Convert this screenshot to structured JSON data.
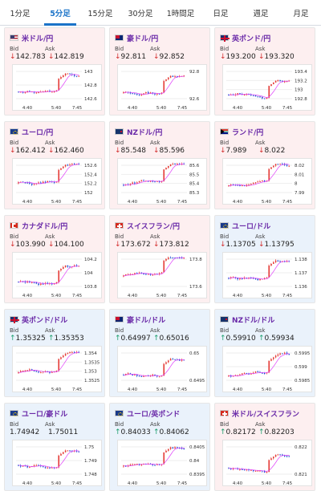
{
  "tabs": [
    {
      "label": "1分足",
      "active": false
    },
    {
      "label": "5分足",
      "active": true
    },
    {
      "label": "15分足",
      "active": false
    },
    {
      "label": "30分足",
      "active": false
    },
    {
      "label": "1時間足",
      "active": false
    },
    {
      "label": "日足",
      "active": false
    },
    {
      "label": "週足",
      "active": false
    },
    {
      "label": "月足",
      "active": false
    }
  ],
  "labels": {
    "bid": "Bid",
    "ask": "Ask"
  },
  "colors": {
    "up": "#1a9d6b",
    "down": "#d32f2f",
    "candle_up": "#e53935",
    "candle_down": "#1e4bd1",
    "ma": "#e040fb",
    "accent": "#1a73c8"
  },
  "cards": [
    {
      "name": "米ドル/円",
      "flag": "us",
      "bg": "pink",
      "bid": "142.783",
      "ask": "142.819",
      "dir": "down",
      "ticks": [
        "143",
        "142.8",
        "142.6"
      ],
      "times": [
        "4:40",
        "5:40",
        "7:45"
      ]
    },
    {
      "name": "豪ドル/円",
      "flag": "au",
      "bg": "pink",
      "bid": "92.811",
      "ask": "92.852",
      "dir": "down",
      "ticks": [
        "92.8",
        "92.6"
      ],
      "times": [
        "4:40",
        "5:40",
        "7:45"
      ]
    },
    {
      "name": "英ポンド/円",
      "flag": "gb",
      "bg": "pink",
      "bid": "193.200",
      "ask": "193.320",
      "dir": "down",
      "ticks": [
        "193.4",
        "193.2",
        "193",
        "192.8"
      ],
      "times": [
        "4:40",
        "5:40",
        "7:45"
      ]
    },
    {
      "name": "ユーロ/円",
      "flag": "eu",
      "bg": "pink",
      "bid": "162.412",
      "ask": "162.460",
      "dir": "down",
      "ticks": [
        "152.6",
        "152.4",
        "152.2",
        "152"
      ],
      "times": [
        "4:40",
        "5:40",
        "7:45"
      ]
    },
    {
      "name": "NZドル/円",
      "flag": "nz",
      "bg": "pink",
      "bid": "85.548",
      "ask": "85.596",
      "dir": "down",
      "ticks": [
        "85.6",
        "85.5",
        "85.4",
        "85.3"
      ],
      "times": [
        "4:40",
        "5:40",
        "7:45"
      ]
    },
    {
      "name": "ランド/円",
      "flag": "za",
      "bg": "pink",
      "bid": "7.989",
      "ask": "8.022",
      "dir": "down",
      "ticks": [
        "8.02",
        "8.01",
        "8",
        "7.99"
      ],
      "times": [
        "4:40",
        "5:40",
        "7:45"
      ]
    },
    {
      "name": "カナダドル/円",
      "flag": "ca",
      "bg": "pink",
      "bid": "103.990",
      "ask": "104.100",
      "dir": "down",
      "ticks": [
        "104.2",
        "104",
        "103.8"
      ],
      "times": [
        "4:40",
        "5:40",
        "7:45"
      ]
    },
    {
      "name": "スイスフラン/円",
      "flag": "ch",
      "bg": "pink",
      "bid": "173.672",
      "ask": "173.812",
      "dir": "down",
      "ticks": [
        "173.8",
        "173.6"
      ],
      "times": [
        "4:40",
        "5:40",
        "7:45"
      ]
    },
    {
      "name": "ユーロ/ドル",
      "flag": "eu",
      "bg": "blue",
      "bid": "1.13705",
      "ask": "1.13795",
      "dir": "down",
      "ticks": [
        "1.138",
        "1.137",
        "1.136"
      ],
      "times": [
        "4:40",
        "5:40",
        "7:45"
      ]
    },
    {
      "name": "英ポンド/ドル",
      "flag": "gb",
      "bg": "blue",
      "bid": "1.35325",
      "ask": "1.35353",
      "dir": "up",
      "ticks": [
        "1.354",
        "1.3535",
        "1.353",
        "1.3525"
      ],
      "times": [
        "4:40",
        "5:40",
        "7:45"
      ]
    },
    {
      "name": "豪ドル/ドル",
      "flag": "au",
      "bg": "blue",
      "bid": "0.64997",
      "ask": "0.65016",
      "dir": "up",
      "ticks": [
        "0.65",
        "0.6495"
      ],
      "times": [
        "4:40",
        "5:40",
        "7:45"
      ]
    },
    {
      "name": "NZドル/ドル",
      "flag": "nz",
      "bg": "blue",
      "bid": "0.59910",
      "ask": "0.59934",
      "dir": "up",
      "ticks": [
        "0.5995",
        "0.599",
        "0.5985"
      ],
      "times": [
        "4:40",
        "5:40",
        "7:45"
      ]
    },
    {
      "name": "ユーロ/豪ドル",
      "flag": "eu",
      "bg": "blue",
      "bid": "1.74942",
      "ask": "1.75011",
      "dir": "none",
      "ticks": [
        "1.75",
        "1.749",
        "1.748"
      ],
      "times": [
        "4:40",
        "5:40",
        "7:45"
      ]
    },
    {
      "name": "ユーロ/英ポンド",
      "flag": "eu",
      "bg": "blue",
      "bid": "0.84033",
      "ask": "0.84062",
      "dir": "up",
      "ticks": [
        "0.8405",
        "0.84",
        "0.8395"
      ],
      "times": [
        "4:40",
        "5:40",
        "7:45"
      ]
    },
    {
      "name": "米ドル/スイスフラン",
      "flag": "ch",
      "bg": "pink",
      "bid": "0.82172",
      "ask": "0.82203",
      "dir": "up",
      "ticks": [
        "0.822",
        "0.821"
      ],
      "times": [
        "4:40",
        "5:40",
        "7:45"
      ]
    }
  ]
}
